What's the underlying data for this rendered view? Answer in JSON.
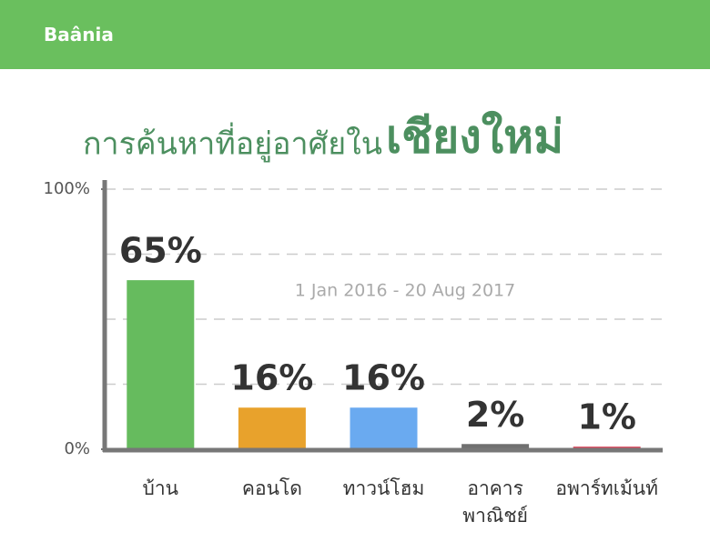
{
  "brand": "Baânia",
  "chart_data": {
    "type": "bar",
    "title": "การค้นหาที่อยู่อาศัยใน",
    "title_highlight": "เชียงใหม่",
    "annotation": "1 Jan 2016 - 20 Aug 2017",
    "categories": [
      "บ้าน",
      "คอนโด",
      "ทาวน์โฮม",
      "อาคาร\nพาณิชย์",
      "อพาร์ทเม้นท์"
    ],
    "values": [
      65,
      16,
      16,
      2,
      1
    ],
    "value_labels": [
      "65%",
      "16%",
      "16%",
      "2%",
      "1%"
    ],
    "colors": [
      "#66bb5e",
      "#e8a22c",
      "#6aaaf0",
      "#707070",
      "#d9445a"
    ],
    "ylim": [
      0,
      100
    ],
    "yticks": [
      {
        "value": 0,
        "label": "0%"
      },
      {
        "value": 100,
        "label": "100%"
      }
    ],
    "ygrid": [
      25,
      50,
      75,
      100
    ],
    "grid": true
  }
}
